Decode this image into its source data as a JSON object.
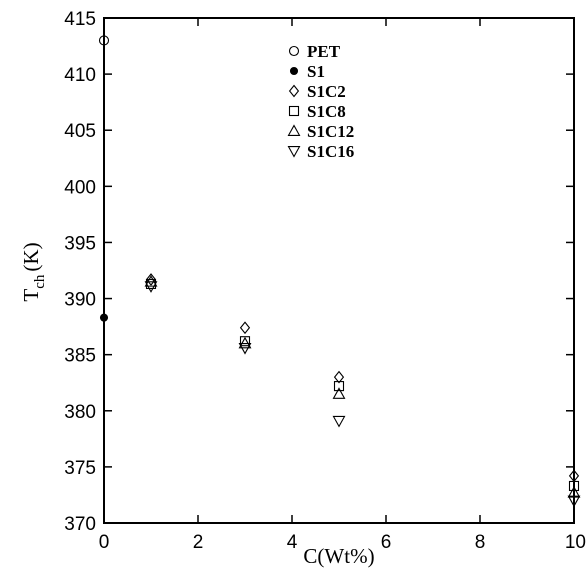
{
  "chart_data": {
    "type": "scatter",
    "title": "",
    "xlabel": "C(Wt%)",
    "ylabel_main": "T",
    "ylabel_sub": "ch",
    "ylabel_unit": "(K)",
    "xlim": [
      0,
      10
    ],
    "ylim": [
      370,
      415
    ],
    "xticks": [
      0,
      2,
      4,
      6,
      8,
      10
    ],
    "yticks": [
      370,
      375,
      380,
      385,
      390,
      395,
      400,
      405,
      410,
      415
    ],
    "grid": false,
    "legend_position": "top-center",
    "series": [
      {
        "name": "PET",
        "marker": "circle-open",
        "points": [
          [
            0,
            413.0
          ]
        ]
      },
      {
        "name": "S1",
        "marker": "circle-filled",
        "points": [
          [
            0,
            388.3
          ]
        ]
      },
      {
        "name": "S1C2",
        "marker": "diamond-open",
        "points": [
          [
            1,
            391.7
          ],
          [
            3,
            387.4
          ],
          [
            5,
            383.0
          ],
          [
            10,
            374.2
          ]
        ]
      },
      {
        "name": "S1C8",
        "marker": "square-open",
        "points": [
          [
            1,
            391.3
          ],
          [
            3,
            386.2
          ],
          [
            5,
            382.2
          ],
          [
            10,
            373.3
          ]
        ]
      },
      {
        "name": "S1C12",
        "marker": "triangle-up-open",
        "points": [
          [
            1,
            391.5
          ],
          [
            3,
            386.0
          ],
          [
            5,
            381.5
          ],
          [
            10,
            372.7
          ]
        ]
      },
      {
        "name": "S1C16",
        "marker": "triangle-down-open",
        "points": [
          [
            1,
            391.1
          ],
          [
            3,
            385.6
          ],
          [
            5,
            379.1
          ],
          [
            10,
            372.0
          ]
        ]
      }
    ]
  }
}
